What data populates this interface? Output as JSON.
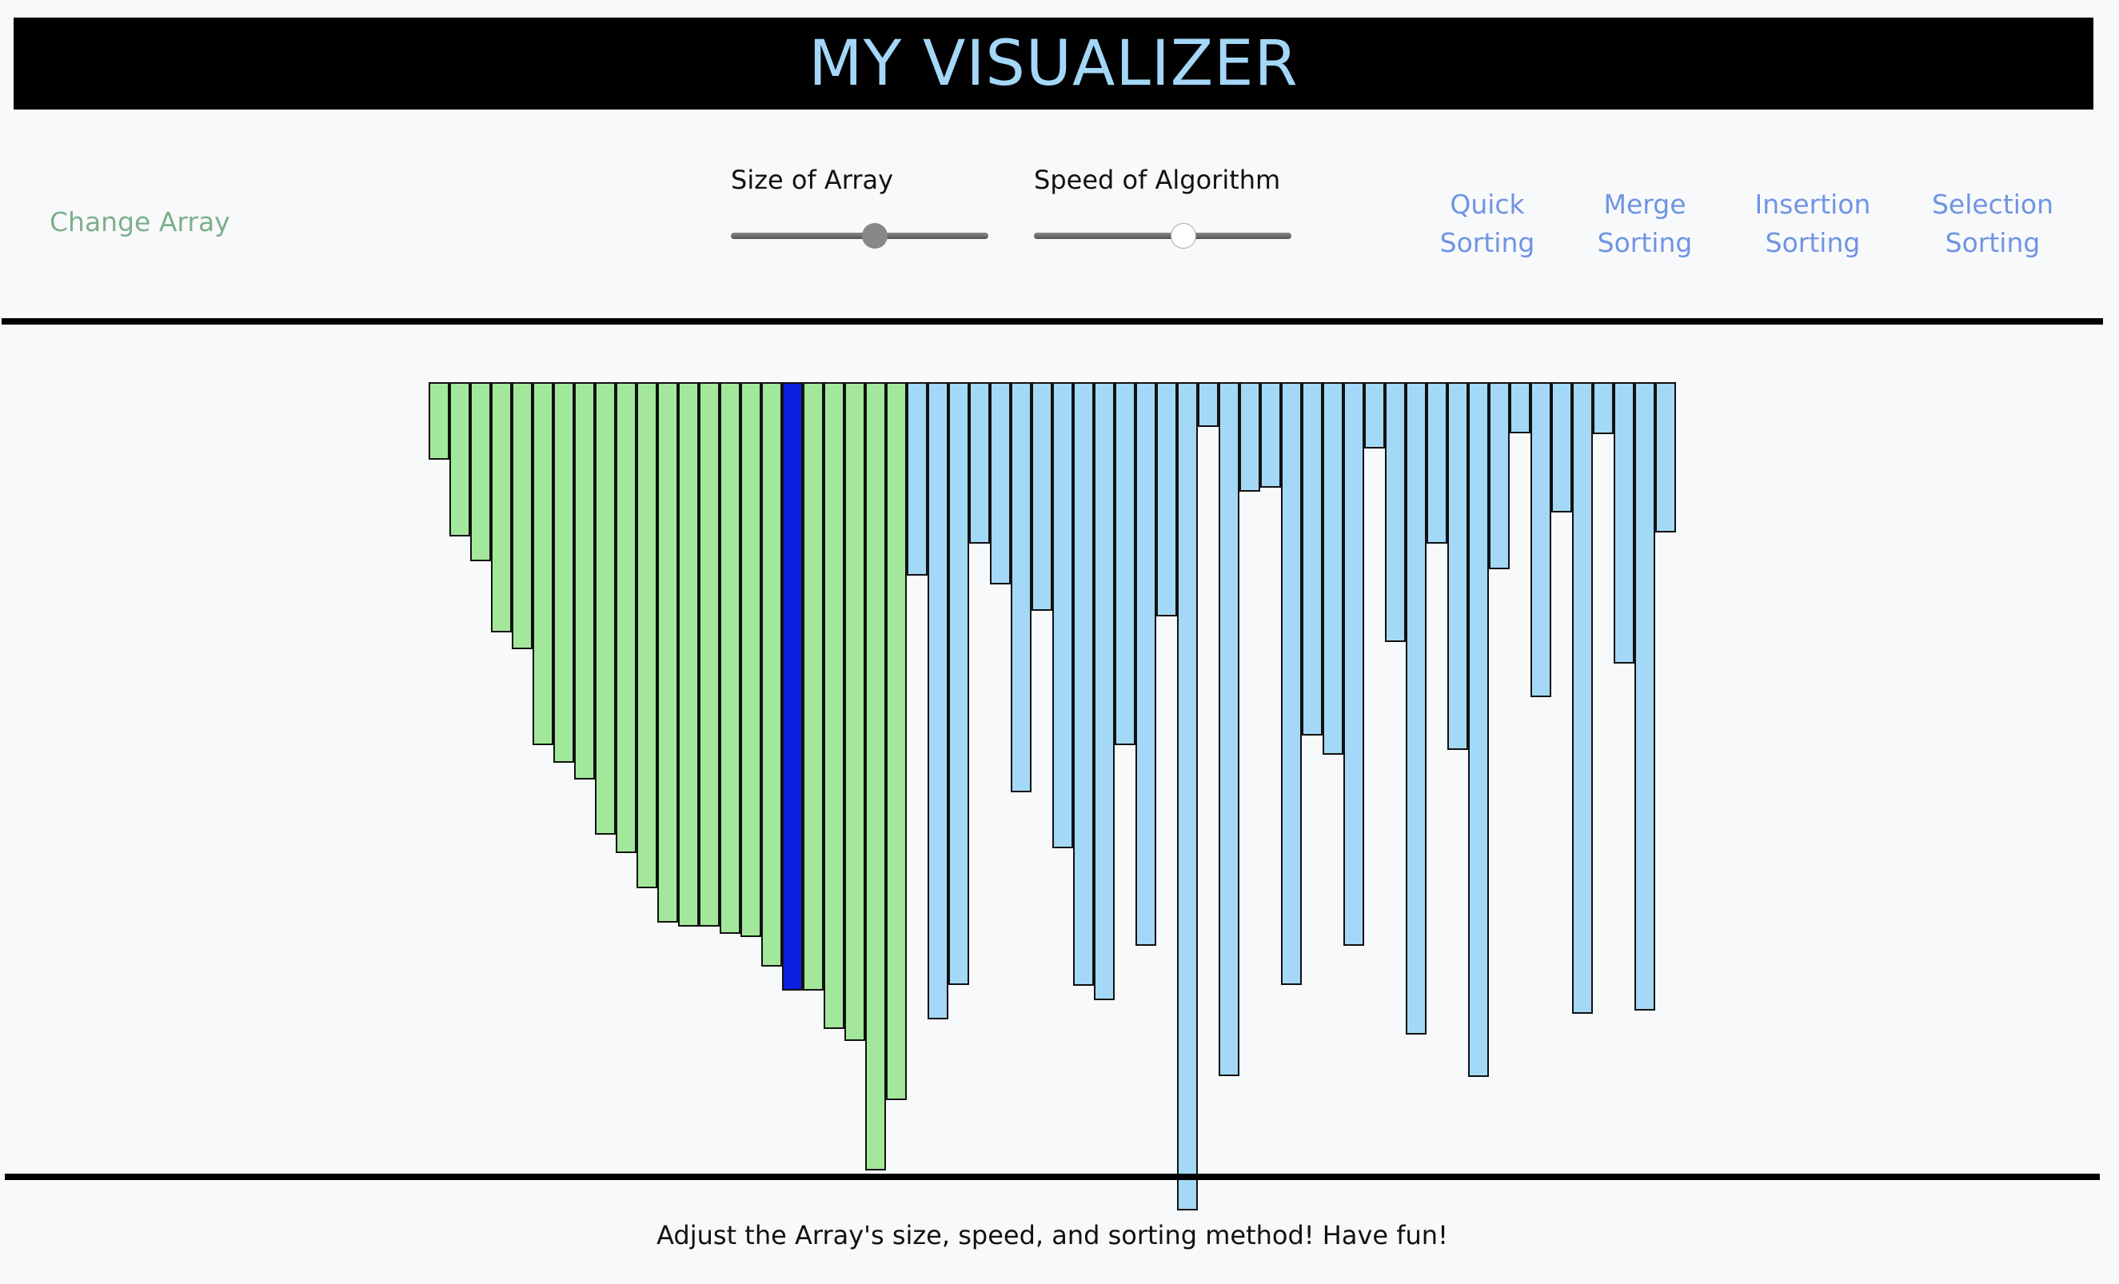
{
  "header": {
    "title": "MY VISUALIZER",
    "title_color": "#a4d7f7"
  },
  "controls": {
    "change_array_label": "Change Array",
    "size_slider": {
      "label": "Size of Array",
      "value_fraction": 0.56
    },
    "speed_slider": {
      "label": "Speed of Algorithm",
      "value_fraction": 0.58
    },
    "algorithms": [
      {
        "line1": "Quick",
        "line2": "Sorting"
      },
      {
        "line1": "Merge",
        "line2": "Sorting"
      },
      {
        "line1": "Insertion",
        "line2": "Sorting"
      },
      {
        "line1": "Selection",
        "line2": "Sorting"
      }
    ]
  },
  "footer": {
    "message": "Adjust the Array's size, speed, and sorting method! Have fun!"
  },
  "colors": {
    "sorted": "#a3e89a",
    "active": "#0a1fe0",
    "unsorted": "#a4d8f7",
    "button_text": "#6f94e3",
    "change_array_text": "#7eb08b"
  },
  "array": {
    "active_index": 17,
    "sorted_count": 23,
    "values": [
      97,
      193,
      224,
      313,
      334,
      454,
      476,
      497,
      566,
      589,
      633,
      676,
      681,
      681,
      690,
      694,
      731,
      761,
      761,
      809,
      824,
      986,
      898,
      242,
      797,
      754,
      202,
      253,
      513,
      286,
      583,
      755,
      773,
      454,
      705,
      293,
      1036,
      56,
      868,
      137,
      132,
      754,
      442,
      466,
      705,
      83,
      325,
      816,
      202,
      460,
      869,
      234,
      64,
      394,
      163,
      790,
      65,
      352,
      786,
      188
    ]
  }
}
